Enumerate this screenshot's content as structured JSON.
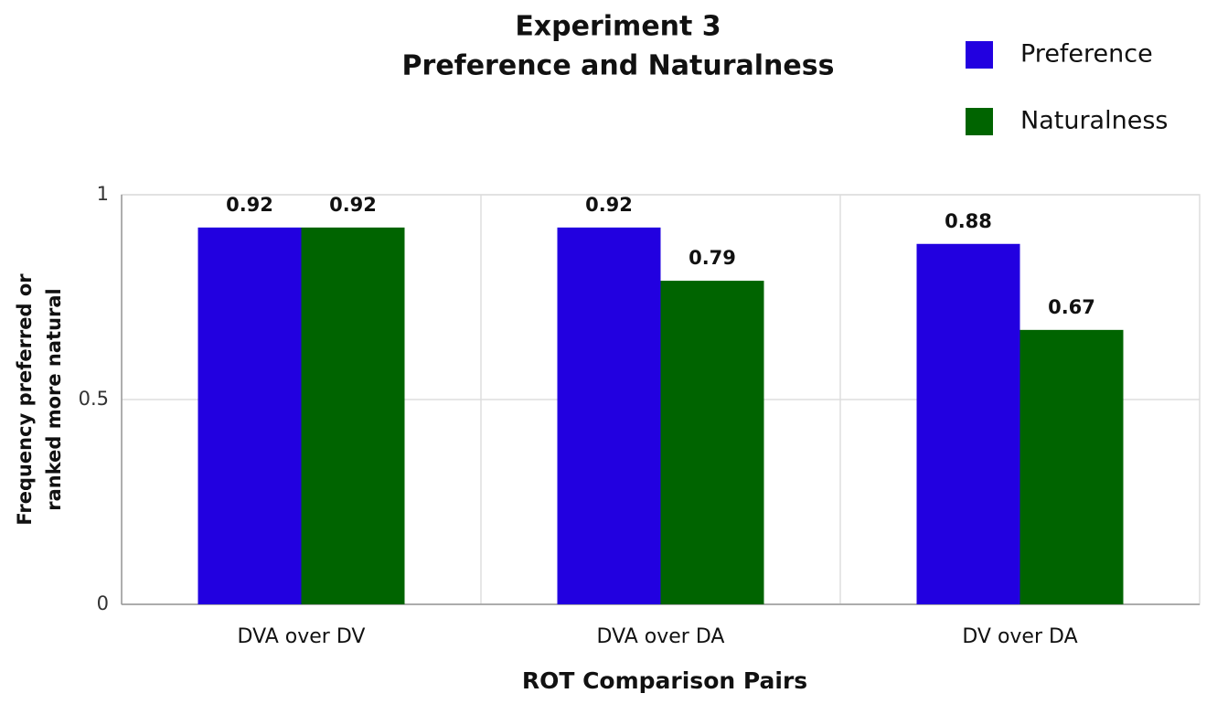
{
  "chart_data": {
    "type": "bar",
    "title": [
      "Experiment 3",
      "Preference and Naturalness"
    ],
    "xlabel": "ROT Comparison Pairs",
    "ylabel": [
      "Frequency preferred or",
      "ranked more natural"
    ],
    "categories": [
      "DVA over DV",
      "DVA over DA",
      "DV over DA"
    ],
    "series": [
      {
        "name": "Preference",
        "color": "#2200e0",
        "values": [
          0.92,
          0.92,
          0.88
        ]
      },
      {
        "name": "Naturalness",
        "color": "#006400",
        "values": [
          0.92,
          0.79,
          0.67
        ]
      }
    ],
    "ylim": [
      0,
      1
    ],
    "yticks": [
      0,
      0.5,
      1
    ],
    "grid": true,
    "legend": "top-right"
  }
}
